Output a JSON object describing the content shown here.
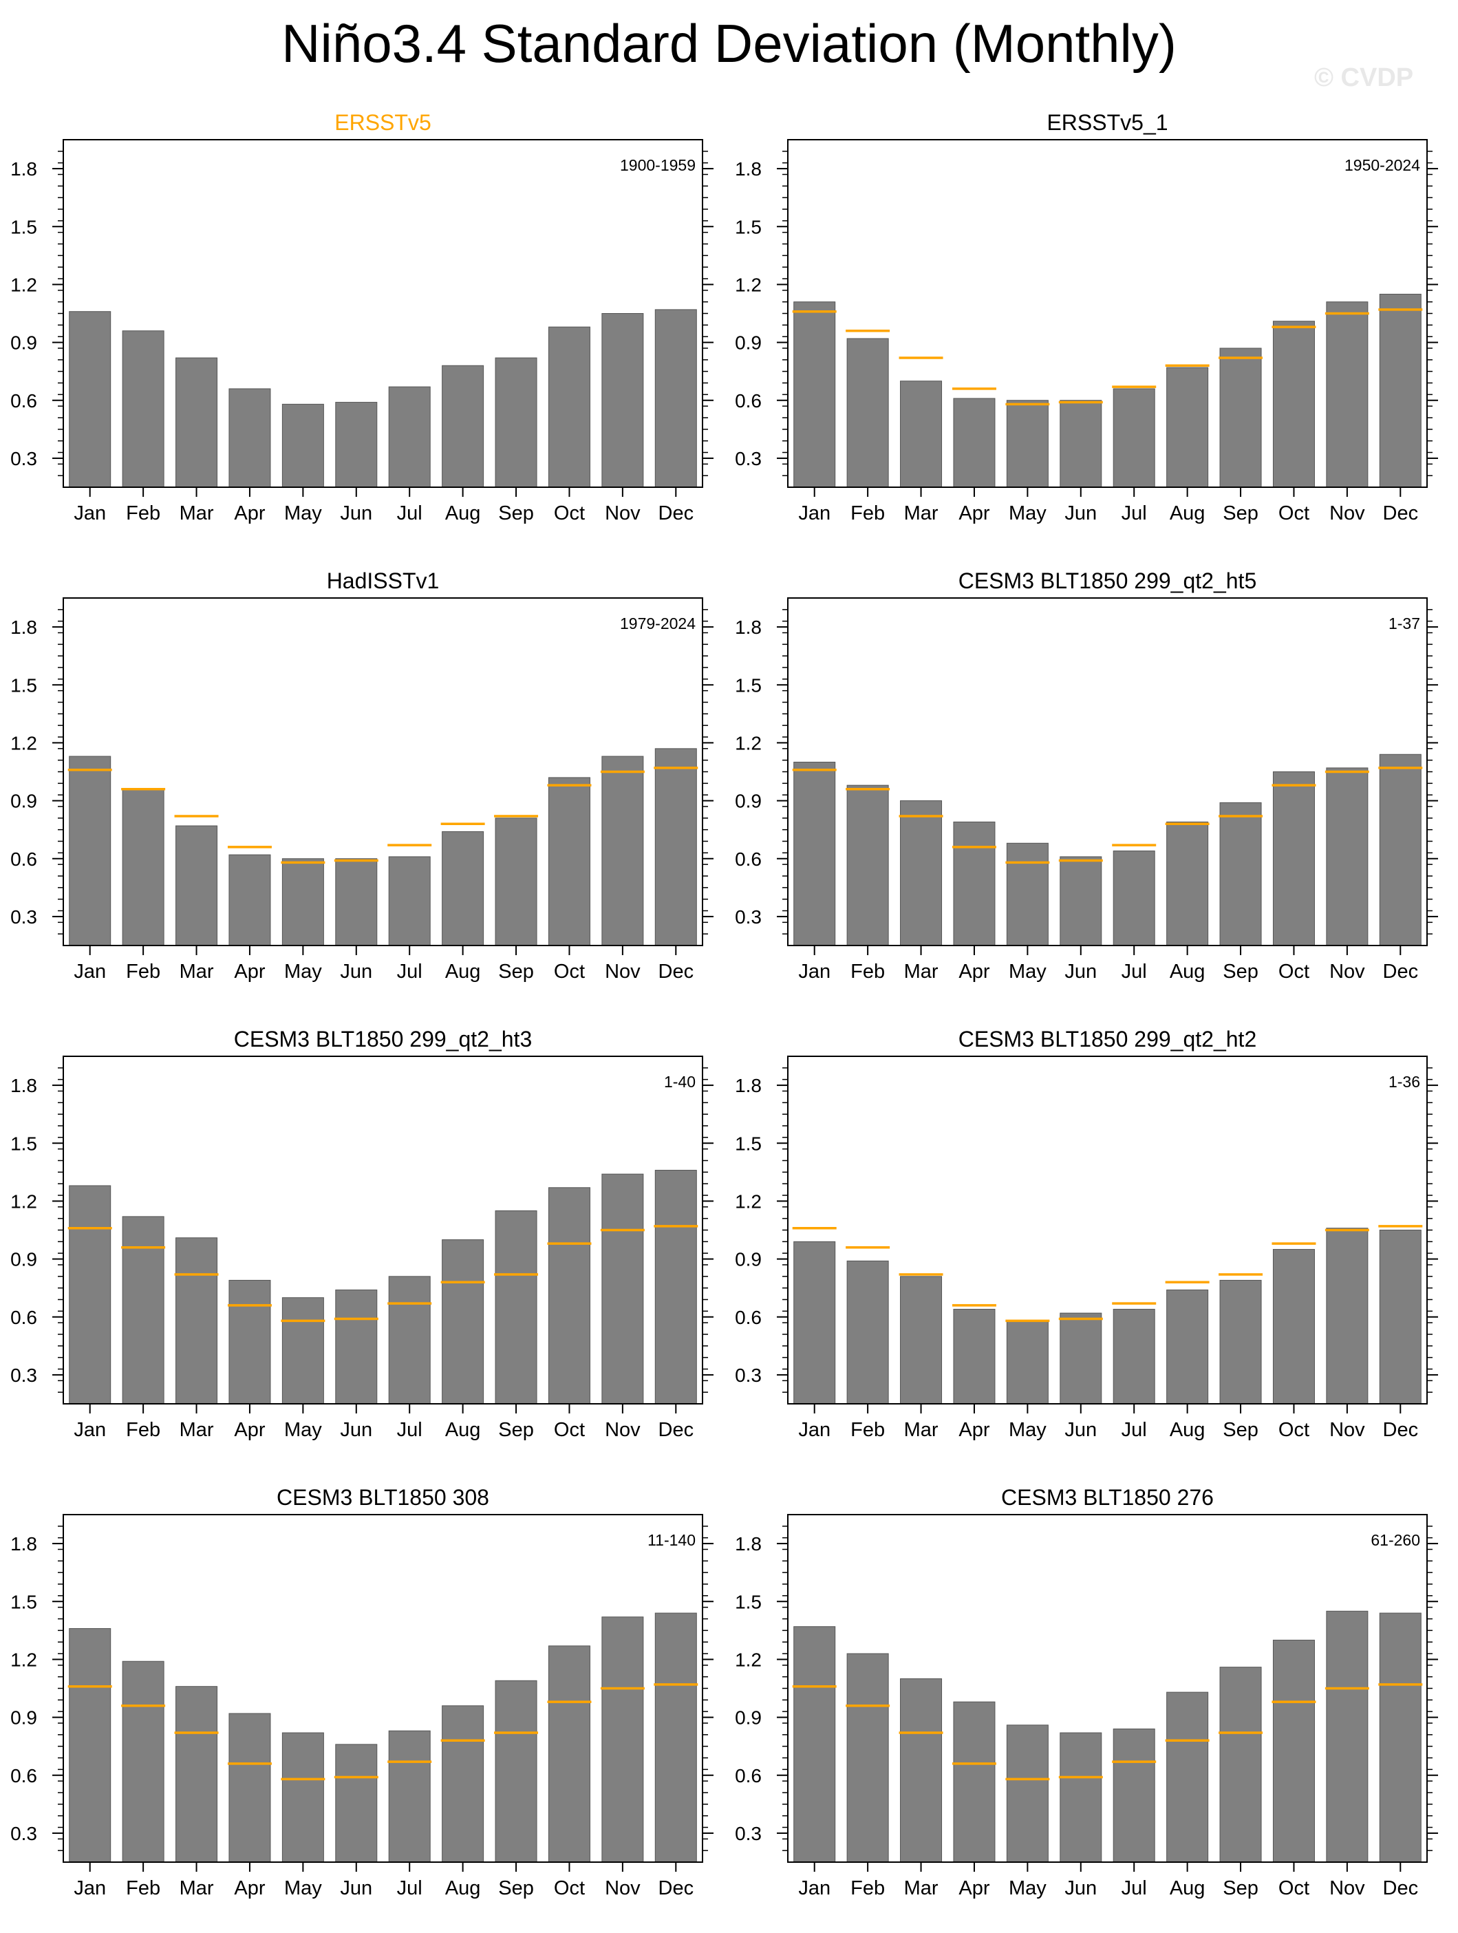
{
  "title": "Niño3.4 Standard Deviation (Monthly)",
  "watermark": "© CVDP",
  "colors": {
    "bar": "#808080",
    "reference": "#FFA500",
    "ref_title": "#FFA500",
    "title": "#000000"
  },
  "chart_data": [
    {
      "type": "bar",
      "title": "ERSSTv5",
      "period": "1900-1959",
      "is_reference": true,
      "categories": [
        "Jan",
        "Feb",
        "Mar",
        "Apr",
        "May",
        "Jun",
        "Jul",
        "Aug",
        "Sep",
        "Oct",
        "Nov",
        "Dec"
      ],
      "values": [
        1.06,
        0.96,
        0.82,
        0.66,
        0.58,
        0.59,
        0.67,
        0.78,
        0.82,
        0.98,
        1.05,
        1.07
      ],
      "reference_values": null,
      "ylim": [
        0.15,
        1.95
      ],
      "yticks": [
        "0.3",
        "0.6",
        "0.9",
        "1.2",
        "1.5",
        "1.8"
      ]
    },
    {
      "type": "bar",
      "title": "ERSSTv5_1",
      "period": "1950-2024",
      "is_reference": false,
      "categories": [
        "Jan",
        "Feb",
        "Mar",
        "Apr",
        "May",
        "Jun",
        "Jul",
        "Aug",
        "Sep",
        "Oct",
        "Nov",
        "Dec"
      ],
      "values": [
        1.11,
        0.92,
        0.7,
        0.61,
        0.6,
        0.6,
        0.66,
        0.77,
        0.87,
        1.01,
        1.11,
        1.15
      ],
      "reference_values": [
        1.06,
        0.96,
        0.82,
        0.66,
        0.58,
        0.59,
        0.67,
        0.78,
        0.82,
        0.98,
        1.05,
        1.07
      ],
      "ylim": [
        0.15,
        1.95
      ],
      "yticks": [
        "0.3",
        "0.6",
        "0.9",
        "1.2",
        "1.5",
        "1.8"
      ]
    },
    {
      "type": "bar",
      "title": "HadISSTv1",
      "period": "1979-2024",
      "is_reference": false,
      "categories": [
        "Jan",
        "Feb",
        "Mar",
        "Apr",
        "May",
        "Jun",
        "Jul",
        "Aug",
        "Sep",
        "Oct",
        "Nov",
        "Dec"
      ],
      "values": [
        1.13,
        0.96,
        0.77,
        0.62,
        0.6,
        0.6,
        0.61,
        0.74,
        0.81,
        1.02,
        1.13,
        1.17
      ],
      "reference_values": [
        1.06,
        0.96,
        0.82,
        0.66,
        0.58,
        0.59,
        0.67,
        0.78,
        0.82,
        0.98,
        1.05,
        1.07
      ],
      "ylim": [
        0.15,
        1.95
      ],
      "yticks": [
        "0.3",
        "0.6",
        "0.9",
        "1.2",
        "1.5",
        "1.8"
      ]
    },
    {
      "type": "bar",
      "title": "CESM3 BLT1850 299_qt2_ht5",
      "period": "1-37",
      "is_reference": false,
      "categories": [
        "Jan",
        "Feb",
        "Mar",
        "Apr",
        "May",
        "Jun",
        "Jul",
        "Aug",
        "Sep",
        "Oct",
        "Nov",
        "Dec"
      ],
      "values": [
        1.1,
        0.98,
        0.9,
        0.79,
        0.68,
        0.61,
        0.64,
        0.79,
        0.89,
        1.05,
        1.07,
        1.14
      ],
      "reference_values": [
        1.06,
        0.96,
        0.82,
        0.66,
        0.58,
        0.59,
        0.67,
        0.78,
        0.82,
        0.98,
        1.05,
        1.07
      ],
      "ylim": [
        0.15,
        1.95
      ],
      "yticks": [
        "0.3",
        "0.6",
        "0.9",
        "1.2",
        "1.5",
        "1.8"
      ]
    },
    {
      "type": "bar",
      "title": "CESM3 BLT1850 299_qt2_ht3",
      "period": "1-40",
      "is_reference": false,
      "categories": [
        "Jan",
        "Feb",
        "Mar",
        "Apr",
        "May",
        "Jun",
        "Jul",
        "Aug",
        "Sep",
        "Oct",
        "Nov",
        "Dec"
      ],
      "values": [
        1.28,
        1.12,
        1.01,
        0.79,
        0.7,
        0.74,
        0.81,
        1.0,
        1.15,
        1.27,
        1.34,
        1.36
      ],
      "reference_values": [
        1.06,
        0.96,
        0.82,
        0.66,
        0.58,
        0.59,
        0.67,
        0.78,
        0.82,
        0.98,
        1.05,
        1.07
      ],
      "ylim": [
        0.15,
        1.95
      ],
      "yticks": [
        "0.3",
        "0.6",
        "0.9",
        "1.2",
        "1.5",
        "1.8"
      ]
    },
    {
      "type": "bar",
      "title": "CESM3 BLT1850 299_qt2_ht2",
      "period": "1-36",
      "is_reference": false,
      "categories": [
        "Jan",
        "Feb",
        "Mar",
        "Apr",
        "May",
        "Jun",
        "Jul",
        "Aug",
        "Sep",
        "Oct",
        "Nov",
        "Dec"
      ],
      "values": [
        0.99,
        0.89,
        0.81,
        0.64,
        0.58,
        0.62,
        0.64,
        0.74,
        0.79,
        0.95,
        1.06,
        1.05
      ],
      "reference_values": [
        1.06,
        0.96,
        0.82,
        0.66,
        0.58,
        0.59,
        0.67,
        0.78,
        0.82,
        0.98,
        1.05,
        1.07
      ],
      "ylim": [
        0.15,
        1.95
      ],
      "yticks": [
        "0.3",
        "0.6",
        "0.9",
        "1.2",
        "1.5",
        "1.8"
      ]
    },
    {
      "type": "bar",
      "title": "CESM3 BLT1850 308",
      "period": "11-140",
      "is_reference": false,
      "categories": [
        "Jan",
        "Feb",
        "Mar",
        "Apr",
        "May",
        "Jun",
        "Jul",
        "Aug",
        "Sep",
        "Oct",
        "Nov",
        "Dec"
      ],
      "values": [
        1.36,
        1.19,
        1.06,
        0.92,
        0.82,
        0.76,
        0.83,
        0.96,
        1.09,
        1.27,
        1.42,
        1.44
      ],
      "reference_values": [
        1.06,
        0.96,
        0.82,
        0.66,
        0.58,
        0.59,
        0.67,
        0.78,
        0.82,
        0.98,
        1.05,
        1.07
      ],
      "ylim": [
        0.15,
        1.95
      ],
      "yticks": [
        "0.3",
        "0.6",
        "0.9",
        "1.2",
        "1.5",
        "1.8"
      ]
    },
    {
      "type": "bar",
      "title": "CESM3 BLT1850 276",
      "period": "61-260",
      "is_reference": false,
      "categories": [
        "Jan",
        "Feb",
        "Mar",
        "Apr",
        "May",
        "Jun",
        "Jul",
        "Aug",
        "Sep",
        "Oct",
        "Nov",
        "Dec"
      ],
      "values": [
        1.37,
        1.23,
        1.1,
        0.98,
        0.86,
        0.82,
        0.84,
        1.03,
        1.16,
        1.3,
        1.45,
        1.44
      ],
      "reference_values": [
        1.06,
        0.96,
        0.82,
        0.66,
        0.58,
        0.59,
        0.67,
        0.78,
        0.82,
        0.98,
        1.05,
        1.07
      ],
      "ylim": [
        0.15,
        1.95
      ],
      "yticks": [
        "0.3",
        "0.6",
        "0.9",
        "1.2",
        "1.5",
        "1.8"
      ]
    }
  ]
}
